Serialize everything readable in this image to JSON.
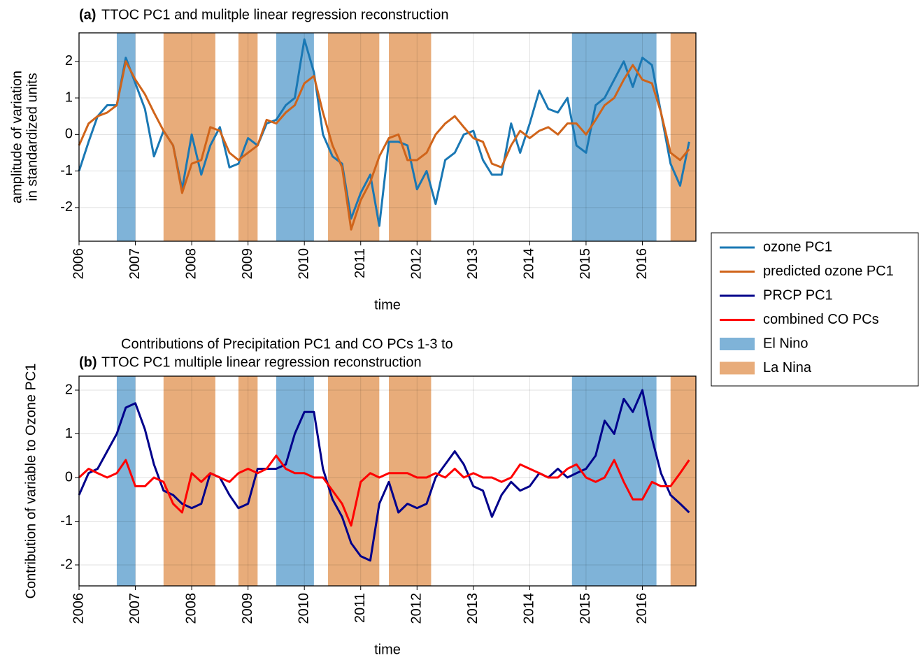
{
  "chart_data": [
    {
      "type": "line",
      "panel_label": "(a)",
      "title": [
        "TTOC PC1 and mulitple linear regression reconstruction"
      ],
      "ylabel": [
        "amplitude of variation",
        "in standardized units"
      ],
      "xlabel": "time",
      "x": [
        2006,
        2006.17,
        2006.33,
        2006.5,
        2006.67,
        2006.83,
        2007,
        2007.17,
        2007.33,
        2007.5,
        2007.67,
        2007.83,
        2008,
        2008.17,
        2008.33,
        2008.5,
        2008.67,
        2008.83,
        2009,
        2009.17,
        2009.33,
        2009.5,
        2009.67,
        2009.83,
        2010,
        2010.17,
        2010.33,
        2010.5,
        2010.67,
        2010.83,
        2011,
        2011.17,
        2011.33,
        2011.5,
        2011.67,
        2011.83,
        2012,
        2012.17,
        2012.33,
        2012.5,
        2012.67,
        2012.83,
        2013,
        2013.17,
        2013.33,
        2013.5,
        2013.67,
        2013.83,
        2014,
        2014.17,
        2014.33,
        2014.5,
        2014.67,
        2014.83,
        2015,
        2015.17,
        2015.33,
        2015.5,
        2015.67,
        2015.83,
        2016,
        2016.17,
        2016.33,
        2016.5,
        2016.67,
        2016.83
      ],
      "series": [
        {
          "name": "ozone PC1",
          "color": "#1a78b4",
          "values": [
            -1.0,
            -0.2,
            0.5,
            0.8,
            0.8,
            2.1,
            1.4,
            0.7,
            -0.6,
            0.1,
            -0.3,
            -1.5,
            0.0,
            -1.1,
            -0.3,
            0.2,
            -0.9,
            -0.8,
            -0.1,
            -0.3,
            0.3,
            0.4,
            0.8,
            1.0,
            2.6,
            1.7,
            0.0,
            -0.6,
            -0.8,
            -2.3,
            -1.6,
            -1.1,
            -2.5,
            -0.2,
            -0.2,
            -0.3,
            -1.5,
            -1.0,
            -1.9,
            -0.7,
            -0.5,
            0.0,
            0.1,
            -0.7,
            -1.1,
            -1.1,
            0.3,
            -0.5,
            0.3,
            1.2,
            0.7,
            0.6,
            1.0,
            -0.3,
            -0.5,
            0.8,
            1.0,
            1.5,
            2.0,
            1.3,
            2.1,
            1.9,
            0.6,
            -0.8,
            -1.4,
            -0.2
          ]
        },
        {
          "name": "predicted ozone PC1",
          "color": "#d0641a",
          "values": [
            -0.3,
            0.3,
            0.5,
            0.6,
            0.8,
            2.0,
            1.5,
            1.1,
            0.6,
            0.1,
            -0.3,
            -1.6,
            -0.8,
            -0.7,
            0.2,
            0.1,
            -0.5,
            -0.7,
            -0.5,
            -0.3,
            0.4,
            0.3,
            0.6,
            0.8,
            1.4,
            1.6,
            0.6,
            -0.3,
            -0.9,
            -2.6,
            -1.8,
            -1.3,
            -0.6,
            -0.1,
            0.0,
            -0.7,
            -0.7,
            -0.5,
            0.0,
            0.3,
            0.5,
            0.2,
            -0.1,
            -0.2,
            -0.8,
            -0.9,
            -0.3,
            0.1,
            -0.1,
            0.1,
            0.2,
            0.0,
            0.3,
            0.3,
            0.0,
            0.4,
            0.8,
            1.0,
            1.5,
            1.9,
            1.5,
            1.4,
            0.6,
            -0.5,
            -0.7,
            -0.4
          ]
        }
      ],
      "xlim": [
        2006,
        2016.95
      ],
      "xticks": [
        2006,
        2007,
        2008,
        2009,
        2010,
        2011,
        2012,
        2013,
        2014,
        2015,
        2016
      ],
      "ylim": [
        -2.92,
        2.78
      ],
      "yticks": [
        -2,
        -1,
        0,
        1,
        2
      ],
      "grid": true
    },
    {
      "type": "line",
      "panel_label": "(b)",
      "title": [
        "Contributions of Precipitation PC1 and CO PCs 1-3 to",
        "TTOC PC1 multiple linear regression reconstruction"
      ],
      "ylabel": [
        "Contribution of variable to Ozone PC1"
      ],
      "xlabel": "time",
      "x": [
        2006,
        2006.17,
        2006.33,
        2006.5,
        2006.67,
        2006.83,
        2007,
        2007.17,
        2007.33,
        2007.5,
        2007.67,
        2007.83,
        2008,
        2008.17,
        2008.33,
        2008.5,
        2008.67,
        2008.83,
        2009,
        2009.17,
        2009.33,
        2009.5,
        2009.67,
        2009.83,
        2010,
        2010.17,
        2010.33,
        2010.5,
        2010.67,
        2010.83,
        2011,
        2011.17,
        2011.33,
        2011.5,
        2011.67,
        2011.83,
        2012,
        2012.17,
        2012.33,
        2012.5,
        2012.67,
        2012.83,
        2013,
        2013.17,
        2013.33,
        2013.5,
        2013.67,
        2013.83,
        2014,
        2014.17,
        2014.33,
        2014.5,
        2014.67,
        2014.83,
        2015,
        2015.17,
        2015.33,
        2015.5,
        2015.67,
        2015.83,
        2016,
        2016.17,
        2016.33,
        2016.5,
        2016.67,
        2016.83
      ],
      "series": [
        {
          "name": "PRCP PC1",
          "color": "#00008b",
          "values": [
            -0.4,
            0.1,
            0.2,
            0.6,
            1.0,
            1.6,
            1.7,
            1.1,
            0.3,
            -0.3,
            -0.4,
            -0.6,
            -0.7,
            -0.6,
            0.1,
            0.0,
            -0.4,
            -0.7,
            -0.6,
            0.2,
            0.2,
            0.2,
            0.3,
            1.0,
            1.5,
            1.5,
            0.2,
            -0.5,
            -0.9,
            -1.5,
            -1.8,
            -1.9,
            -0.6,
            -0.1,
            -0.8,
            -0.6,
            -0.7,
            -0.6,
            0.0,
            0.3,
            0.6,
            0.3,
            -0.2,
            -0.3,
            -0.9,
            -0.4,
            -0.1,
            -0.3,
            -0.2,
            0.1,
            0.0,
            0.2,
            0.0,
            0.1,
            0.2,
            0.5,
            1.3,
            1.0,
            1.8,
            1.5,
            2.0,
            0.9,
            0.1,
            -0.4,
            -0.6,
            -0.8
          ]
        },
        {
          "name": "combined CO PCs",
          "color": "#ff0000",
          "values": [
            0.0,
            0.2,
            0.1,
            0.0,
            0.1,
            0.4,
            -0.2,
            -0.2,
            0.0,
            -0.1,
            -0.6,
            -0.8,
            0.1,
            -0.1,
            0.1,
            0.0,
            -0.1,
            0.1,
            0.2,
            0.1,
            0.2,
            0.5,
            0.2,
            0.1,
            0.1,
            0.0,
            0.0,
            -0.3,
            -0.6,
            -1.1,
            -0.1,
            0.1,
            0.0,
            0.1,
            0.1,
            0.1,
            0.0,
            0.0,
            0.1,
            0.0,
            0.2,
            0.0,
            0.1,
            0.0,
            0.0,
            -0.1,
            0.0,
            0.3,
            0.2,
            0.1,
            0.0,
            0.0,
            0.2,
            0.3,
            0.0,
            -0.1,
            0.0,
            0.4,
            -0.1,
            -0.5,
            -0.5,
            -0.1,
            -0.2,
            -0.2,
            0.1,
            0.4
          ]
        }
      ],
      "xlim": [
        2006,
        2016.95
      ],
      "xticks": [
        2006,
        2007,
        2008,
        2009,
        2010,
        2011,
        2012,
        2013,
        2014,
        2015,
        2016
      ],
      "ylim": [
        -2.48,
        2.32
      ],
      "yticks": [
        -2,
        -1,
        0,
        1,
        2
      ],
      "grid": true
    }
  ],
  "enso": [
    {
      "name": "El Nino",
      "color": "#7fb3d8",
      "periods": [
        [
          2006.67,
          2007.0
        ],
        [
          2009.5,
          2010.17
        ],
        [
          2014.75,
          2016.25
        ]
      ]
    },
    {
      "name": "La Nina",
      "color": "#e8ac7a",
      "periods": [
        [
          2007.5,
          2008.42
        ],
        [
          2008.83,
          2009.17
        ],
        [
          2010.42,
          2011.33
        ],
        [
          2011.5,
          2012.25
        ],
        [
          2016.5,
          2016.95
        ]
      ]
    }
  ],
  "legend": {
    "loc": "right"
  }
}
